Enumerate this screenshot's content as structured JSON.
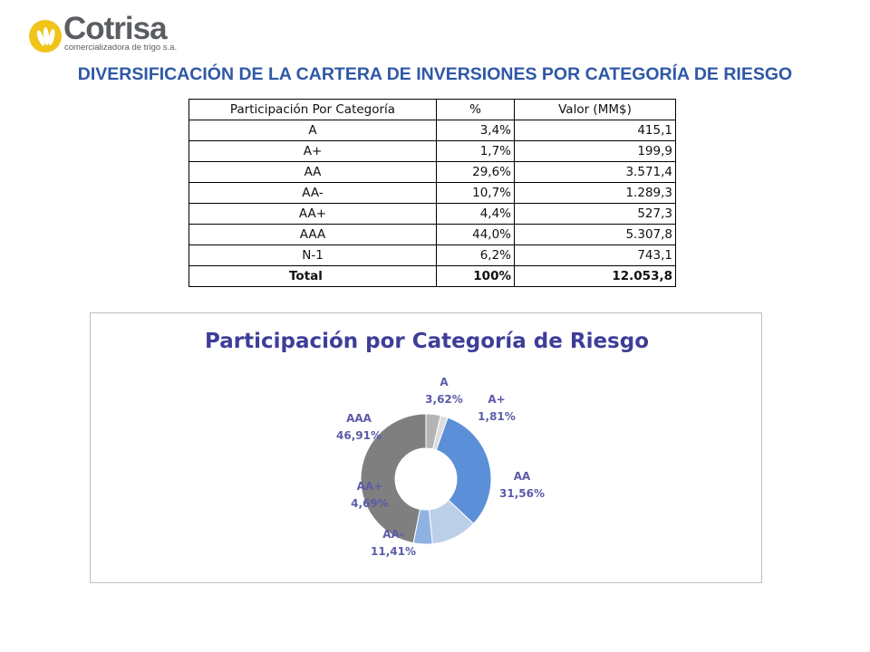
{
  "logo": {
    "name": "Cotrisa",
    "tagline": "comercializadora de trigo s.a."
  },
  "page_title": "DIVERSIFICACIÓN DE LA CARTERA DE INVERSIONES POR CATEGORÍA DE RIESGO",
  "table": {
    "headers": [
      "Participación Por Categoría",
      "%",
      "Valor (MM$)"
    ],
    "rows": [
      [
        "A",
        "3,4%",
        "415,1"
      ],
      [
        "A+",
        "1,7%",
        "199,9"
      ],
      [
        "AA",
        "29,6%",
        "3.571,4"
      ],
      [
        "AA-",
        "10,7%",
        "1.289,3"
      ],
      [
        "AA+",
        "4,4%",
        "527,3"
      ],
      [
        "AAA",
        "44,0%",
        "5.307,8"
      ],
      [
        "N-1",
        "6,2%",
        "743,1"
      ]
    ],
    "total": [
      "Total",
      "100%",
      "12.053,8"
    ]
  },
  "chart_data": {
    "type": "pie",
    "title": "Participación por Categoría de Riesgo",
    "categories": [
      "A",
      "A+",
      "AA",
      "AA-",
      "AA+",
      "AAA"
    ],
    "values": [
      3.62,
      1.81,
      31.56,
      11.41,
      4.69,
      46.91
    ],
    "value_labels": [
      "3,62%",
      "1,81%",
      "31,56%",
      "11,41%",
      "4,69%",
      "46,91%"
    ],
    "colors": [
      "#b4b4b4",
      "#dcdcdc",
      "#5b8fd8",
      "#bccfe9",
      "#8fb2e3",
      "#7f7f7f"
    ],
    "donut": true,
    "legend": "none"
  }
}
